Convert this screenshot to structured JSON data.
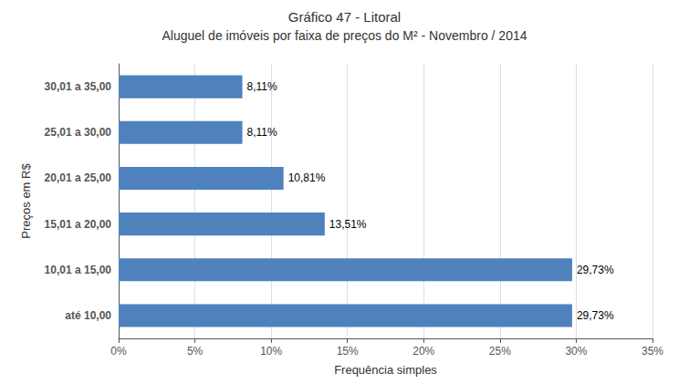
{
  "chart_data": {
    "type": "bar",
    "orientation": "horizontal",
    "title": "Gráfico 47 - Litoral",
    "subtitle": "Aluguel de imóveis por faixa de preços do M² - Novembro / 2014",
    "categories": [
      "até 10,00",
      "10,01 a 15,00",
      "15,01 a 20,00",
      "20,01 a 25,00",
      "25,01 a 30,00",
      "30,01 a 35,00"
    ],
    "values": [
      29.73,
      29.73,
      13.51,
      10.81,
      8.11,
      8.11
    ],
    "value_labels": [
      "29,73%",
      "29,73%",
      "13,51%",
      "10,81%",
      "8,11%",
      "8,11%"
    ],
    "data_labels": true,
    "color": "#4F81BD",
    "xlabel": "Frequência simples",
    "ylabel": "Preços em R$",
    "xlim": [
      0,
      35
    ],
    "xticks": [
      {
        "value": 0,
        "label": "0%"
      },
      {
        "value": 5,
        "label": "5%"
      },
      {
        "value": 10,
        "label": "10%"
      },
      {
        "value": 15,
        "label": "15%"
      },
      {
        "value": 20,
        "label": "20%"
      },
      {
        "value": 25,
        "label": "25%"
      },
      {
        "value": 30,
        "label": "30%"
      },
      {
        "value": 35,
        "label": "35%"
      }
    ],
    "grid": true
  }
}
